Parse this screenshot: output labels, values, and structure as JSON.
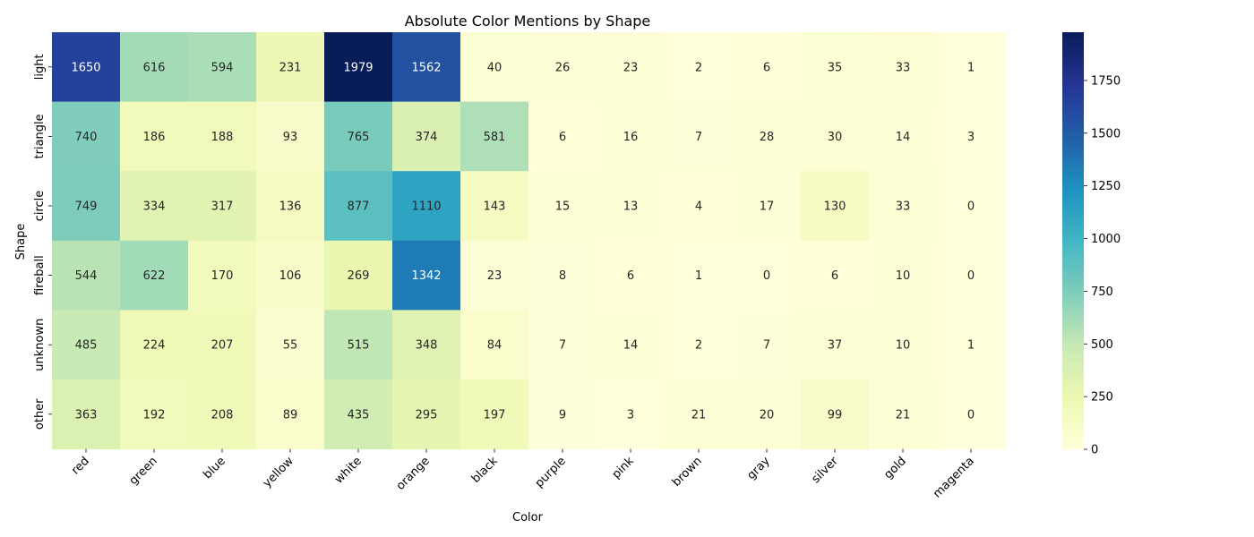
{
  "chart_data": {
    "type": "heatmap",
    "title": "Absolute Color Mentions by Shape",
    "xlabel": "Color",
    "ylabel": "Shape",
    "x_categories": [
      "red",
      "green",
      "blue",
      "yellow",
      "white",
      "orange",
      "black",
      "purple",
      "pink",
      "brown",
      "gray",
      "silver",
      "gold",
      "magenta"
    ],
    "y_categories": [
      "light",
      "triangle",
      "circle",
      "fireball",
      "unknown",
      "other"
    ],
    "values": [
      [
        1650,
        616,
        594,
        231,
        1979,
        1562,
        40,
        26,
        23,
        2,
        6,
        35,
        33,
        1
      ],
      [
        740,
        186,
        188,
        93,
        765,
        374,
        581,
        6,
        16,
        7,
        28,
        30,
        14,
        3
      ],
      [
        749,
        334,
        317,
        136,
        877,
        1110,
        143,
        15,
        13,
        4,
        17,
        130,
        33,
        0
      ],
      [
        544,
        622,
        170,
        106,
        269,
        1342,
        23,
        8,
        6,
        1,
        0,
        6,
        10,
        0
      ],
      [
        485,
        224,
        207,
        55,
        515,
        348,
        84,
        7,
        14,
        2,
        7,
        37,
        10,
        1
      ],
      [
        363,
        192,
        208,
        89,
        435,
        295,
        197,
        9,
        3,
        21,
        20,
        99,
        21,
        0
      ]
    ],
    "colormap": "YlGnBu",
    "vmin": 0,
    "vmax": 1979,
    "colorbar_ticks": [
      0,
      250,
      500,
      750,
      1000,
      1250,
      1500,
      1750
    ],
    "grid": false
  }
}
